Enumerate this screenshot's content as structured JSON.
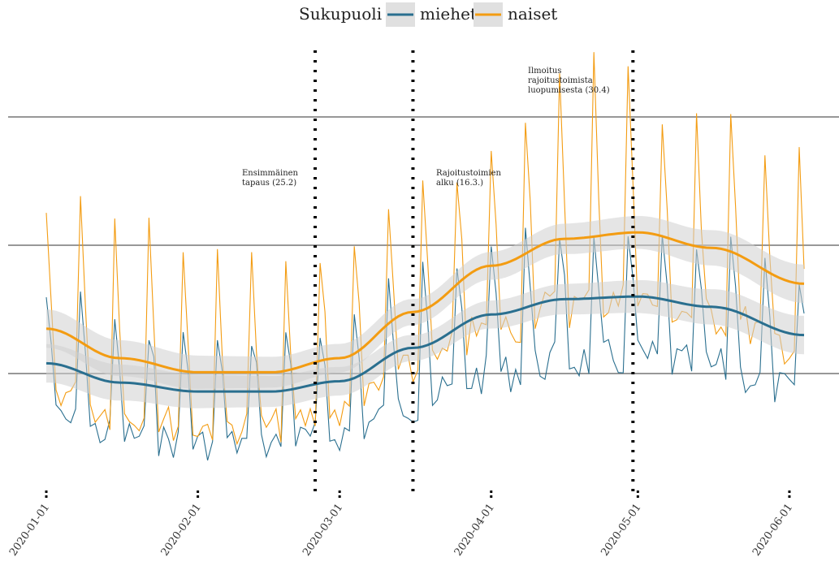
{
  "chart_data": {
    "type": "line",
    "legend": {
      "title": "Sukupuoli",
      "position": "top",
      "entries": [
        {
          "label": "miehet",
          "color": "#2a6f8f"
        },
        {
          "label": "naiset",
          "color": "#f39c12"
        }
      ]
    },
    "x_range": [
      "2020-01-01",
      "2020-06-04"
    ],
    "x_ticks": [
      "2020-01-01",
      "2020-02-01",
      "2020-03-01",
      "2020-04-01",
      "2020-05-01",
      "2020-06-01"
    ],
    "y_axis": {
      "tick_labels_shown": false,
      "gridlines": 3
    },
    "events": [
      {
        "date": "2020-02-25",
        "label_lines": [
          "Ensimmäinen",
          "tapaus (25.2)"
        ]
      },
      {
        "date": "2020-03-16",
        "label_lines": [
          "Rajoitustoimien",
          "alku (16.3.)"
        ]
      },
      {
        "date": "2020-04-30",
        "label_lines": [
          "Ilmoitus",
          "rajoitustoimista",
          "luopumisesta (30.4)"
        ]
      }
    ],
    "series": [
      {
        "name": "naiset",
        "color": "#f39c12",
        "smooth": [
          {
            "date": "2020-01-01",
            "value": 1.35
          },
          {
            "date": "2020-01-16",
            "value": 1.12
          },
          {
            "date": "2020-02-01",
            "value": 1.01
          },
          {
            "date": "2020-02-16",
            "value": 1.01
          },
          {
            "date": "2020-03-01",
            "value": 1.12
          },
          {
            "date": "2020-03-16",
            "value": 1.48
          },
          {
            "date": "2020-04-01",
            "value": 1.84
          },
          {
            "date": "2020-04-16",
            "value": 2.05
          },
          {
            "date": "2020-05-01",
            "value": 2.1
          },
          {
            "date": "2020-05-16",
            "value": 1.98
          },
          {
            "date": "2020-06-04",
            "value": 1.7
          }
        ]
      },
      {
        "name": "miehet",
        "color": "#2a6f8f",
        "smooth": [
          {
            "date": "2020-01-01",
            "value": 1.08
          },
          {
            "date": "2020-01-16",
            "value": 0.93
          },
          {
            "date": "2020-02-01",
            "value": 0.86
          },
          {
            "date": "2020-02-16",
            "value": 0.86
          },
          {
            "date": "2020-03-01",
            "value": 0.94
          },
          {
            "date": "2020-03-16",
            "value": 1.2
          },
          {
            "date": "2020-04-01",
            "value": 1.46
          },
          {
            "date": "2020-04-16",
            "value": 1.58
          },
          {
            "date": "2020-05-01",
            "value": 1.6
          },
          {
            "date": "2020-05-16",
            "value": 1.52
          },
          {
            "date": "2020-06-04",
            "value": 1.3
          }
        ]
      }
    ]
  }
}
